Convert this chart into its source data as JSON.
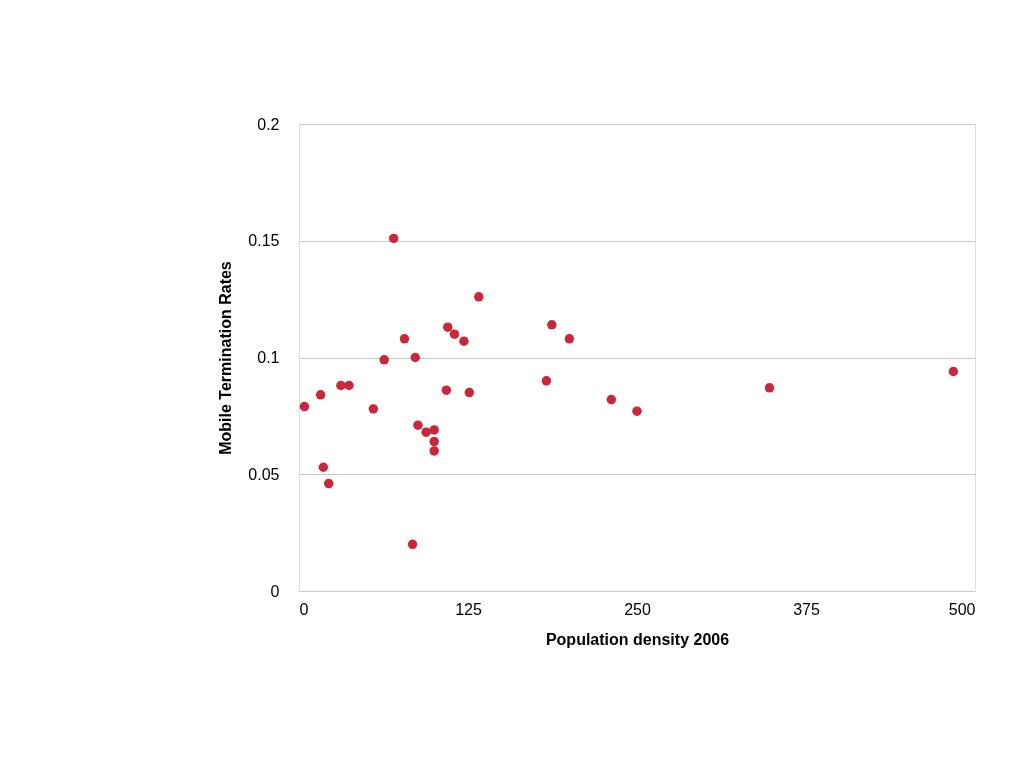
{
  "chart_data": {
    "type": "scatter",
    "xlabel": "Population density 2006",
    "ylabel": "Mobile Termination Rates",
    "x": [
      4,
      16,
      18,
      22,
      31,
      37,
      55,
      63,
      70,
      78,
      84,
      86,
      88,
      94,
      100,
      100,
      100,
      109,
      110,
      115,
      122,
      126,
      133,
      183,
      187,
      200,
      231,
      250,
      348,
      484
    ],
    "series": [
      {
        "color": "#c8283a",
        "values": [
          0.079,
          0.084,
          0.053,
          0.046,
          0.088,
          0.088,
          0.078,
          0.099,
          0.151,
          0.108,
          0.02,
          0.1,
          0.071,
          0.068,
          0.069,
          0.064,
          0.06,
          0.086,
          0.113,
          0.11,
          0.107,
          0.085,
          0.126,
          0.09,
          0.114,
          0.108,
          0.082,
          0.077,
          0.087,
          0.094
        ]
      }
    ],
    "xlim": [
      0,
      500
    ],
    "xticks": [
      0,
      125,
      250,
      375,
      500
    ],
    "ylim": [
      0,
      0.2
    ],
    "yticks": [
      0,
      0.05,
      0.1,
      0.15,
      0.2
    ],
    "grid": "y",
    "marker": "circle"
  }
}
